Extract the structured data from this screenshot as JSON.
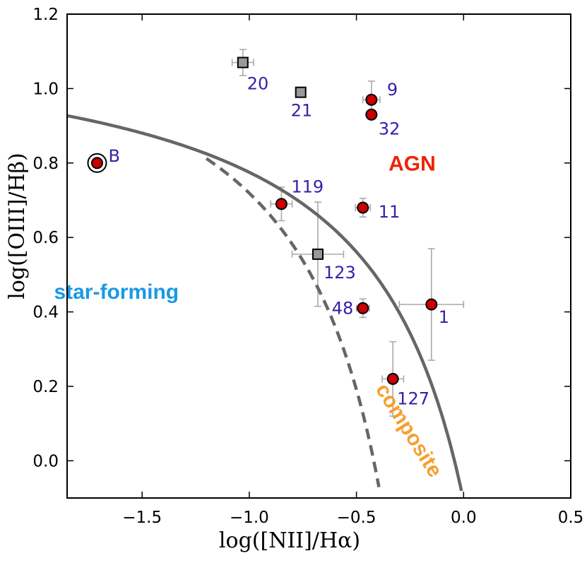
{
  "chart_data": {
    "type": "scatter",
    "title": "",
    "xlabel": "log([NII]/Hα)",
    "ylabel": "log([OIII]/Hβ)",
    "xlim": [
      -1.85,
      0.5
    ],
    "ylim": [
      -0.1,
      1.2
    ],
    "x_ticks": [
      -1.5,
      -1.0,
      -0.5,
      0.0,
      0.5
    ],
    "x_tick_labels": [
      "−1.5",
      "−1.0",
      "−0.5",
      "0.0",
      "0.5"
    ],
    "y_ticks": [
      0.0,
      0.2,
      0.4,
      0.6,
      0.8,
      1.0,
      1.2
    ],
    "y_tick_labels": [
      "0.0",
      "0.2",
      "0.4",
      "0.6",
      "0.8",
      "1.0",
      "1.2"
    ],
    "grid": false,
    "colors": {
      "circle_fill": "#cc0000",
      "square_fill": "#999999",
      "label_color": "#3322aa",
      "errorbar": "#aaaaaa",
      "curve": "#666666",
      "agn": "#ee2200",
      "star_forming": "#1a99e6",
      "composite": "#f5a030"
    },
    "series": [
      {
        "name": "circles",
        "marker": "circle",
        "points": [
          {
            "label": "B",
            "x": -1.71,
            "y": 0.8,
            "xerr": 0,
            "yerr": 0,
            "ring": true,
            "dx": 16,
            "dy": -2
          },
          {
            "label": "9",
            "x": -0.43,
            "y": 0.97,
            "xerr": 0.04,
            "yerr": 0.05,
            "dx": 22,
            "dy": -6
          },
          {
            "label": "32",
            "x": -0.43,
            "y": 0.93,
            "xerr": 0,
            "yerr": 0,
            "dx": 10,
            "dy": 28
          },
          {
            "label": "119",
            "x": -0.85,
            "y": 0.69,
            "xerr": 0.05,
            "yerr": 0.045,
            "dx": 14,
            "dy": -16
          },
          {
            "label": "11",
            "x": -0.47,
            "y": 0.68,
            "xerr": 0.035,
            "yerr": 0.025,
            "dx": 22,
            "dy": 14
          },
          {
            "label": "48",
            "x": -0.47,
            "y": 0.41,
            "xerr": 0.03,
            "yerr": 0.025,
            "dx": -44,
            "dy": 8
          },
          {
            "label": "1",
            "x": -0.15,
            "y": 0.42,
            "xerr": 0.15,
            "yerr": 0.15,
            "dx": 10,
            "dy": 26
          },
          {
            "label": "127",
            "x": -0.33,
            "y": 0.22,
            "xerr": 0.05,
            "yerr": 0.1,
            "dx": 6,
            "dy": 36
          }
        ]
      },
      {
        "name": "squares",
        "marker": "square",
        "points": [
          {
            "label": "20",
            "x": -1.03,
            "y": 1.07,
            "xerr": 0.05,
            "yerr": 0.035,
            "dx": 6,
            "dy": 38
          },
          {
            "label": "21",
            "x": -0.76,
            "y": 0.99,
            "xerr": 0,
            "yerr": 0,
            "dx": -14,
            "dy": 34
          },
          {
            "label": "123",
            "x": -0.68,
            "y": 0.555,
            "xerr": 0.12,
            "yerr": 0.14,
            "dx": 8,
            "dy": 34
          }
        ]
      }
    ],
    "curves": [
      {
        "name": "kewley-maximum-starburst",
        "style": "solid",
        "formula": "0.61/(x-0.47)+1.19",
        "x_range": [
          -1.85,
          -0.01
        ]
      },
      {
        "name": "kauffmann-empirical",
        "style": "dashed",
        "formula": "0.61/(x-0.05)+1.3",
        "x_range": [
          -1.2,
          -0.395
        ]
      }
    ],
    "annotations": [
      {
        "text": "AGN",
        "x": -0.24,
        "y": 0.795,
        "rotate": 0,
        "color_key": "agn"
      },
      {
        "text": "star-forming",
        "x": -1.62,
        "y": 0.45,
        "rotate": 0,
        "color_key": "star_forming"
      },
      {
        "text": "composite",
        "x": -0.26,
        "y": 0.08,
        "rotate": 58,
        "color_key": "composite"
      }
    ]
  }
}
